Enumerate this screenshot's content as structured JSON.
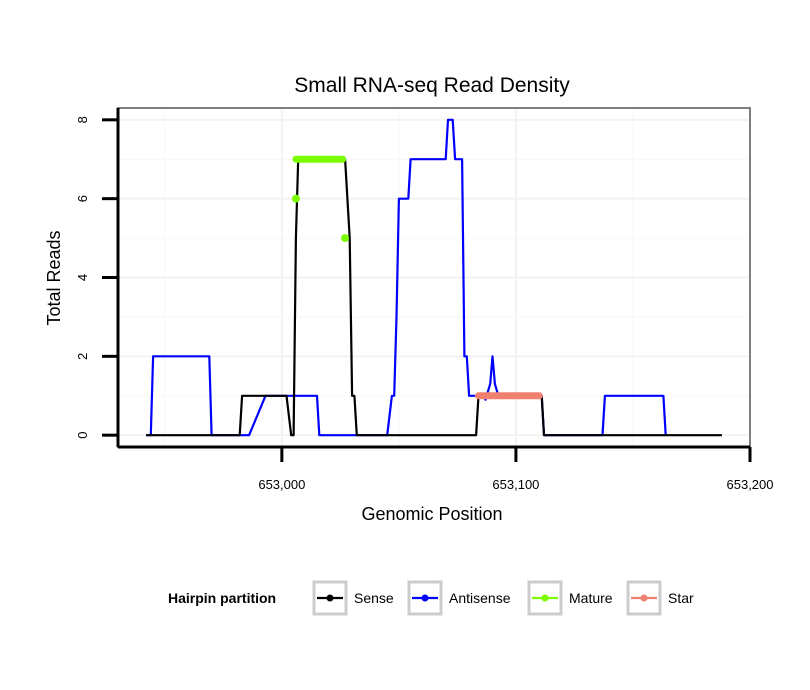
{
  "chart_data": {
    "type": "line",
    "title": "Small RNA-seq Read Density",
    "xlabel": "Genomic Position",
    "ylabel": "Total Reads",
    "xlim": [
      652930,
      653200
    ],
    "ylim": [
      -0.3,
      8.3
    ],
    "x_ticks": [
      {
        "value": 653000,
        "label": "653,000"
      },
      {
        "value": 653100,
        "label": "653,100"
      },
      {
        "value": 653200,
        "label": "653,200"
      }
    ],
    "y_ticks": [
      {
        "value": 0,
        "label": "0"
      },
      {
        "value": 2,
        "label": "2"
      },
      {
        "value": 4,
        "label": "4"
      },
      {
        "value": 6,
        "label": "6"
      },
      {
        "value": 8,
        "label": "8"
      }
    ],
    "grid": true,
    "legend": {
      "title": "Hairpin partition",
      "position": "bottom",
      "items": [
        {
          "label": "Sense",
          "color": "#000000"
        },
        {
          "label": "Antisense",
          "color": "#0000ff"
        },
        {
          "label": "Mature",
          "color": "#7cfc00"
        },
        {
          "label": "Star",
          "color": "#f08070"
        }
      ]
    },
    "series": [
      {
        "name": "Antisense",
        "color": "#0000ff",
        "style": "line",
        "x": [
          652942,
          652944,
          652945,
          652969,
          652970,
          652985,
          652986,
          652993,
          653015,
          653016,
          653029,
          653030,
          653045,
          653047,
          653048,
          653049,
          653050,
          653051,
          653052,
          653054,
          653055,
          653057,
          653070,
          653071,
          653073,
          653074,
          653077,
          653078,
          653079,
          653080,
          653082,
          653086,
          653087,
          653088,
          653089,
          653090,
          653091,
          653092,
          653093,
          653094,
          653101,
          653102,
          653111,
          653112,
          653120,
          653121,
          653137,
          653138,
          653163,
          653164
        ],
        "y": [
          0,
          0,
          2,
          2,
          0,
          0,
          0,
          1,
          1,
          0,
          0,
          0,
          0,
          1,
          1,
          3,
          6,
          6,
          6,
          6,
          7,
          7,
          7,
          8,
          8,
          7,
          7,
          2,
          2,
          1,
          1,
          1,
          0.9,
          1.1,
          1.3,
          2,
          1.3,
          1.1,
          1,
          1,
          1,
          1,
          1,
          0,
          0,
          0,
          0,
          1,
          1,
          0
        ]
      },
      {
        "name": "Sense",
        "color": "#000000",
        "style": "line",
        "x": [
          652942,
          652982,
          652983,
          652988,
          652990,
          653002,
          653004,
          653005,
          653006,
          653007,
          653008,
          653026,
          653027,
          653029,
          653030,
          653031,
          653032,
          653080,
          653083,
          653084,
          653085,
          653086,
          653087,
          653109,
          653110,
          653111,
          653112,
          653188
        ],
        "y": [
          0,
          0,
          1,
          1,
          1,
          1,
          0,
          0,
          5,
          7,
          7,
          7,
          7,
          5,
          1,
          1,
          0,
          0,
          0,
          1,
          1,
          1,
          1,
          1,
          1,
          1,
          0,
          0
        ]
      },
      {
        "name": "Mature",
        "color": "#7cfc00",
        "style": "thick",
        "x": [
          653006,
          653026
        ],
        "y": [
          7,
          7
        ]
      },
      {
        "name": "Star",
        "color": "#f08070",
        "style": "thick",
        "x": [
          653084,
          653110
        ],
        "y": [
          1,
          1
        ]
      }
    ],
    "points": [
      {
        "name": "Mature",
        "color": "#7cfc00",
        "x": 653006,
        "y": 6
      },
      {
        "name": "Mature",
        "color": "#7cfc00",
        "x": 653027,
        "y": 5
      }
    ]
  }
}
